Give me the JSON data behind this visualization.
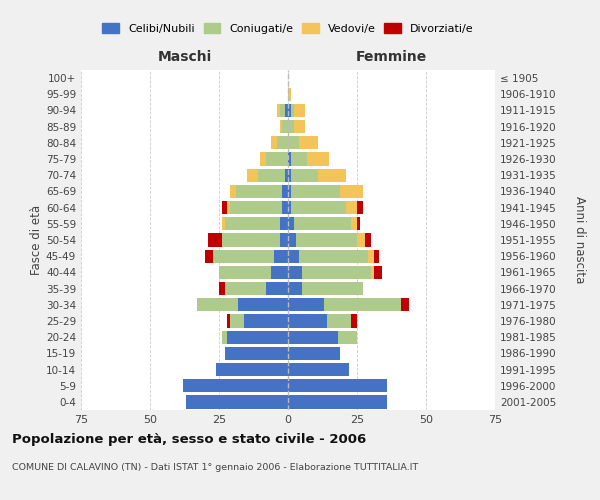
{
  "age_groups": [
    "0-4",
    "5-9",
    "10-14",
    "15-19",
    "20-24",
    "25-29",
    "30-34",
    "35-39",
    "40-44",
    "45-49",
    "50-54",
    "55-59",
    "60-64",
    "65-69",
    "70-74",
    "75-79",
    "80-84",
    "85-89",
    "90-94",
    "95-99",
    "100+"
  ],
  "birth_years": [
    "2001-2005",
    "1996-2000",
    "1991-1995",
    "1986-1990",
    "1981-1985",
    "1976-1980",
    "1971-1975",
    "1966-1970",
    "1961-1965",
    "1956-1960",
    "1951-1955",
    "1946-1950",
    "1941-1945",
    "1936-1940",
    "1931-1935",
    "1926-1930",
    "1921-1925",
    "1916-1920",
    "1911-1915",
    "1906-1910",
    "≤ 1905"
  ],
  "male": {
    "celibi": [
      37,
      38,
      26,
      23,
      22,
      16,
      18,
      8,
      6,
      5,
      3,
      3,
      2,
      2,
      1,
      0,
      0,
      0,
      1,
      0,
      0
    ],
    "coniugati": [
      0,
      0,
      0,
      0,
      2,
      5,
      15,
      15,
      19,
      22,
      21,
      20,
      19,
      17,
      10,
      8,
      4,
      2,
      2,
      0,
      0
    ],
    "vedovi": [
      0,
      0,
      0,
      0,
      0,
      0,
      0,
      0,
      0,
      0,
      0,
      1,
      1,
      2,
      4,
      2,
      2,
      1,
      1,
      0,
      0
    ],
    "divorziati": [
      0,
      0,
      0,
      0,
      0,
      1,
      0,
      2,
      0,
      3,
      5,
      0,
      2,
      0,
      0,
      0,
      0,
      0,
      0,
      0,
      0
    ]
  },
  "female": {
    "nubili": [
      36,
      36,
      22,
      19,
      18,
      14,
      13,
      5,
      5,
      4,
      3,
      2,
      1,
      1,
      1,
      1,
      0,
      0,
      1,
      0,
      0
    ],
    "coniugate": [
      0,
      0,
      0,
      0,
      7,
      9,
      28,
      22,
      25,
      25,
      22,
      21,
      20,
      18,
      10,
      6,
      4,
      2,
      1,
      0,
      0
    ],
    "vedove": [
      0,
      0,
      0,
      0,
      0,
      0,
      0,
      0,
      1,
      2,
      3,
      2,
      4,
      8,
      10,
      8,
      7,
      4,
      4,
      1,
      0
    ],
    "divorziate": [
      0,
      0,
      0,
      0,
      0,
      2,
      3,
      0,
      3,
      2,
      2,
      1,
      2,
      0,
      0,
      0,
      0,
      0,
      0,
      0,
      0
    ]
  },
  "colors": {
    "celibi_nubili": "#4472C4",
    "coniugati": "#AECB8B",
    "vedovi": "#F2C45A",
    "divorziati": "#C00000"
  },
  "xlim": 75,
  "title": "Popolazione per età, sesso e stato civile - 2006",
  "subtitle": "COMUNE DI CALAVINO (TN) - Dati ISTAT 1° gennaio 2006 - Elaborazione TUTTITALIA.IT",
  "ylabel_left": "Fasce di età",
  "ylabel_right": "Anni di nascita",
  "xlabel_left": "Maschi",
  "xlabel_right": "Femmine",
  "background_color": "#f0f0f0",
  "plot_bg": "#ffffff"
}
